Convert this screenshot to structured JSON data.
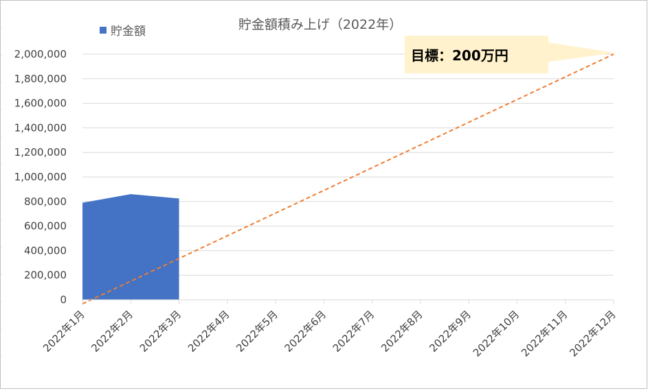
{
  "chart_data": {
    "type": "area",
    "title": "貯金額積み上げ（2022年）",
    "categories": [
      "2022年1月",
      "2022年2月",
      "2022年3月",
      "2022年4月",
      "2022年5月",
      "2022年6月",
      "2022年7月",
      "2022年8月",
      "2022年9月",
      "2022年10月",
      "2022年11月",
      "2022年12月"
    ],
    "series": [
      {
        "name": "貯金額",
        "color": "#4472C4",
        "values": [
          790000,
          860000,
          825000,
          null,
          null,
          null,
          null,
          null,
          null,
          null,
          null,
          null
        ]
      }
    ],
    "target_line": {
      "color": "#ED7D31",
      "style": "dashed",
      "start_value": 0,
      "end_value": 2000000
    },
    "yticks": [
      "0",
      "200,000",
      "400,000",
      "600,000",
      "800,000",
      "1,000,000",
      "1,200,000",
      "1,400,000",
      "1,600,000",
      "1,800,000",
      "2,000,000"
    ],
    "ylim": [
      0,
      2000000
    ],
    "grid": true,
    "legend_position": "top-left",
    "annotation": {
      "text": "目標：200万円",
      "background": "#FFF2CC"
    }
  }
}
